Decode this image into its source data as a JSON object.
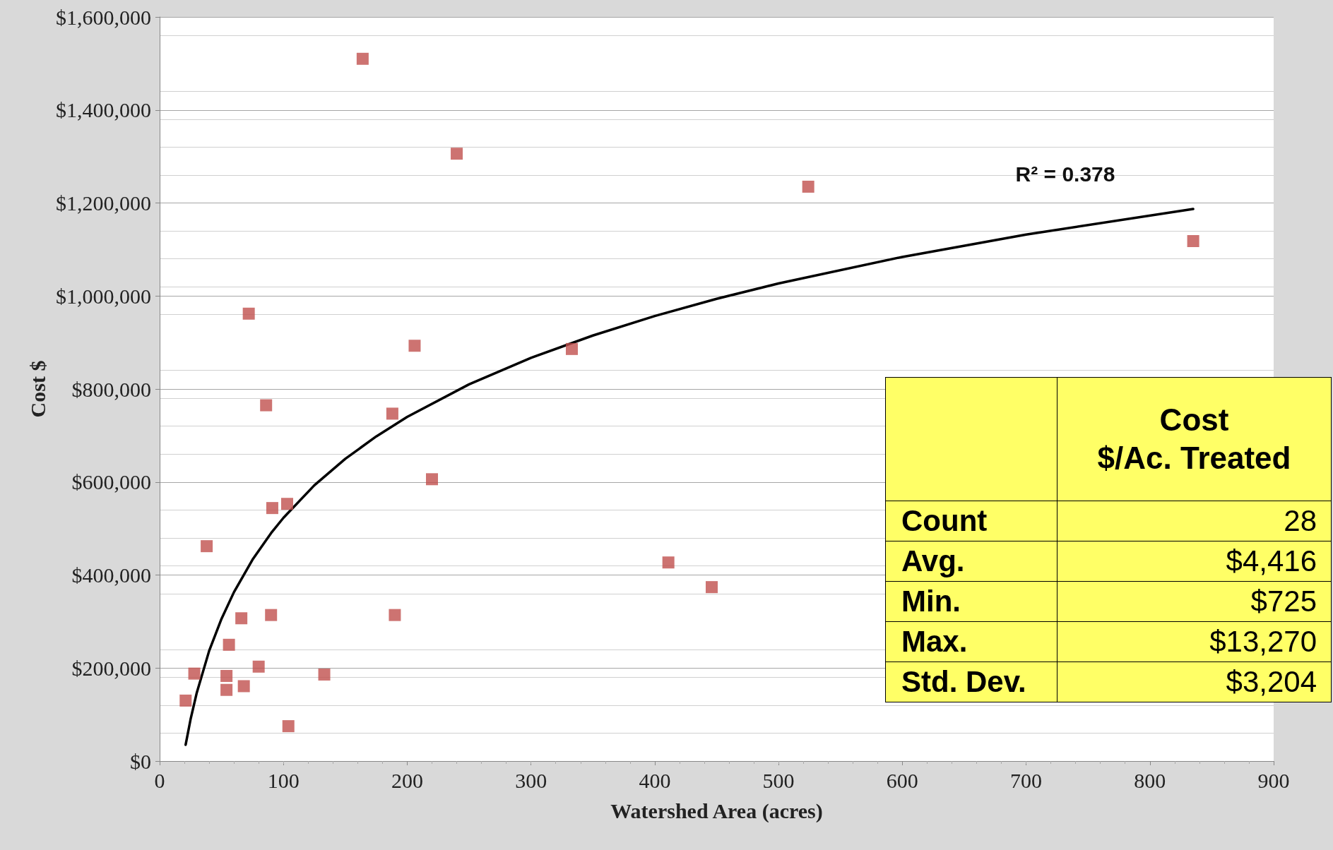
{
  "chart_data": {
    "type": "scatter",
    "xlabel": "Watershed Area (acres)",
    "ylabel": "Cost $",
    "xlim": [
      0,
      900
    ],
    "xticks": [
      0,
      100,
      200,
      300,
      400,
      500,
      600,
      700,
      800,
      900
    ],
    "ylim": [
      0,
      1600000
    ],
    "yticks": [
      {
        "value": 0,
        "label": "$0"
      },
      {
        "value": 200000,
        "label": "$200,000"
      },
      {
        "value": 400000,
        "label": "$400,000"
      },
      {
        "value": 600000,
        "label": "$600,000"
      },
      {
        "value": 800000,
        "label": "$800,000"
      },
      {
        "value": 1000000,
        "label": "$1,000,000"
      },
      {
        "value": 1200000,
        "label": "$1,200,000"
      },
      {
        "value": 1400000,
        "label": "$1,400,000"
      },
      {
        "value": 1600000,
        "label": "$1,600,000"
      }
    ],
    "grid": "y",
    "marker": "square",
    "series": [
      {
        "color": "#c0504d",
        "x": [
          164,
          240,
          524,
          835,
          72,
          206,
          333,
          86,
          188,
          220,
          91,
          103,
          38,
          411,
          446,
          66,
          90,
          190,
          56,
          28,
          54,
          133,
          80,
          54,
          68,
          21,
          104
        ],
        "values": [
          1510000,
          1306000,
          1235000,
          1118000,
          962000,
          893000,
          886000,
          765000,
          747000,
          606000,
          544000,
          553000,
          462000,
          427000,
          374000,
          307000,
          314000,
          314000,
          250000,
          188000,
          183000,
          186000,
          203000,
          153000,
          161000,
          130000,
          75000
        ]
      },
      {
        "type": "line",
        "color": "#000000",
        "marker": "none",
        "line_style": "solid",
        "x": [
          21,
          25,
          30,
          40,
          50,
          60,
          75,
          90,
          100,
          125,
          150,
          175,
          200,
          250,
          300,
          350,
          400,
          450,
          500,
          600,
          700,
          835
        ],
        "values": [
          35000,
          90000,
          147000,
          237000,
          306000,
          363000,
          433000,
          490000,
          523000,
          593000,
          650000,
          698000,
          740000,
          810000,
          867000,
          915000,
          957000,
          994000,
          1027000,
          1084000,
          1132000,
          1187000
        ]
      }
    ],
    "annotations": [
      "R² = 0.378",
      "Cost $/Ac. Treated",
      "Count",
      "28",
      "Avg.",
      "$4,416",
      "Min.",
      "$725",
      "Max.",
      "$13,270",
      "Std. Dev.",
      "$3,204"
    ]
  }
}
